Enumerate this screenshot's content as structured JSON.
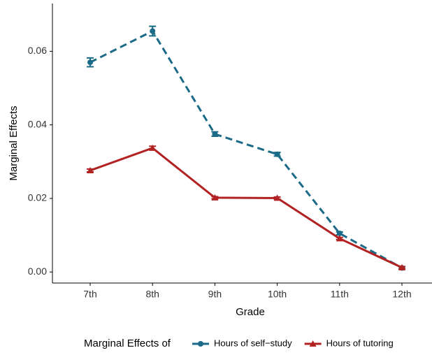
{
  "chart_data": {
    "type": "line",
    "x_label": "Grade",
    "y_label": "Marginal Effects",
    "legend_title": "Marginal Effects of",
    "legend_position": "bottom",
    "categories": [
      "7th",
      "8th",
      "9th",
      "10th",
      "11th",
      "12th"
    ],
    "series": [
      {
        "name": "Hours of self−study",
        "color": "#1b6a87",
        "linestyle": "dashed",
        "marker": "circle",
        "values": [
          0.057,
          0.0655,
          0.0375,
          0.032,
          0.0105,
          0.0011
        ],
        "errors": [
          0.0012,
          0.0013,
          0.0006,
          0.0005,
          0.0004,
          0.0003
        ]
      },
      {
        "name": "Hours of tutoring",
        "color": "#b22222",
        "linestyle": "solid",
        "marker": "triangle",
        "values": [
          0.0276,
          0.0337,
          0.0202,
          0.0201,
          0.0091,
          0.0012
        ],
        "errors": [
          0.0004,
          0.0005,
          0.0003,
          0.0003,
          0.0003,
          0.0003
        ]
      }
    ],
    "ylim": [
      -0.003,
      0.073
    ],
    "yticks": [
      {
        "value": 0,
        "label": "0.00"
      },
      {
        "value": 0.02,
        "label": "0.02"
      },
      {
        "value": 0.04,
        "label": "0.04"
      },
      {
        "value": 0.06,
        "label": "0.06"
      }
    ],
    "grid": false
  }
}
